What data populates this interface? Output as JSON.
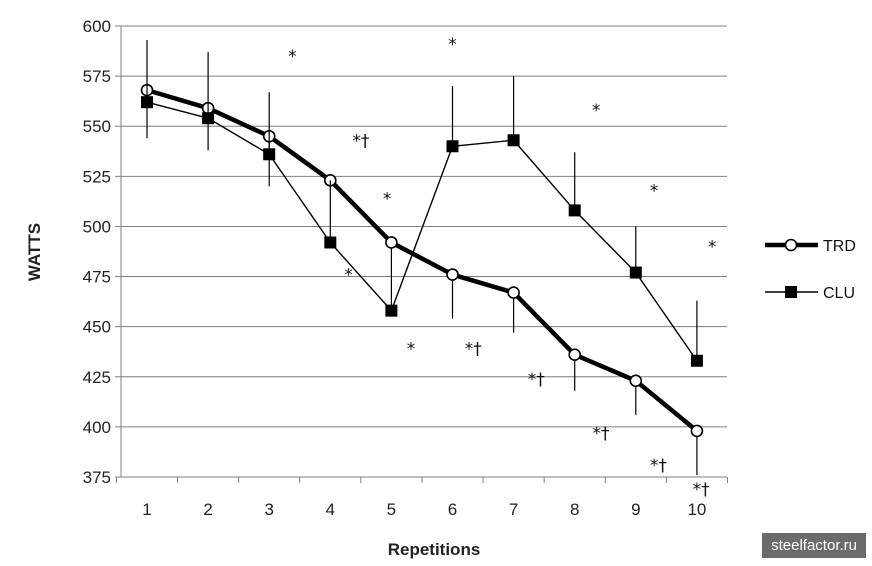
{
  "chart_data": {
    "type": "line",
    "title": "",
    "xlabel": "Repetitions",
    "ylabel": "WATTS",
    "x": [
      1,
      2,
      3,
      4,
      5,
      6,
      7,
      8,
      9,
      10
    ],
    "xlim": [
      0.6,
      10.5
    ],
    "ylim": [
      375,
      600
    ],
    "yticks": [
      375,
      400,
      425,
      450,
      475,
      500,
      525,
      550,
      575,
      600
    ],
    "grid": true,
    "legend_position": "right",
    "series": [
      {
        "name": "TRD",
        "marker": "open-circle",
        "line": "thick",
        "values": [
          568,
          559,
          545,
          523,
          492,
          476,
          467,
          436,
          423,
          398
        ],
        "err_dir": "down",
        "err": [
          24,
          21,
          25,
          0,
          0,
          22,
          20,
          18,
          17,
          22
        ]
      },
      {
        "name": "CLU",
        "marker": "filled-square",
        "line": "thin",
        "values": [
          562,
          554,
          536,
          492,
          458,
          540,
          543,
          508,
          477,
          433
        ],
        "err_dir": "up",
        "err": [
          31,
          33,
          31,
          31,
          31,
          30,
          32,
          29,
          23,
          30
        ]
      }
    ],
    "annotations": [
      {
        "text": "*",
        "x": 3.38,
        "y": 582
      },
      {
        "text": "*†",
        "x": 4.5,
        "y": 540
      },
      {
        "text": "*",
        "x": 4.93,
        "y": 511
      },
      {
        "text": "*",
        "x": 4.3,
        "y": 473
      },
      {
        "text": "*",
        "x": 5.32,
        "y": 436
      },
      {
        "text": "*",
        "x": 6.0,
        "y": 588
      },
      {
        "text": "*†",
        "x": 6.34,
        "y": 436
      },
      {
        "text": "*†",
        "x": 7.37,
        "y": 421
      },
      {
        "text": "*",
        "x": 8.35,
        "y": 555
      },
      {
        "text": "*",
        "x": 9.3,
        "y": 515
      },
      {
        "text": "*†",
        "x": 8.43,
        "y": 394
      },
      {
        "text": "*†",
        "x": 9.37,
        "y": 378
      },
      {
        "text": "*",
        "x": 10.25,
        "y": 487
      },
      {
        "text": "*†",
        "x": 10.07,
        "y": 366
      }
    ]
  },
  "watermark": "steelfactor.ru",
  "colors": {
    "line": "#000000",
    "grid": "#7f7f7f",
    "background": "#ffffff",
    "watermark_bg": "#6b6b6b"
  }
}
